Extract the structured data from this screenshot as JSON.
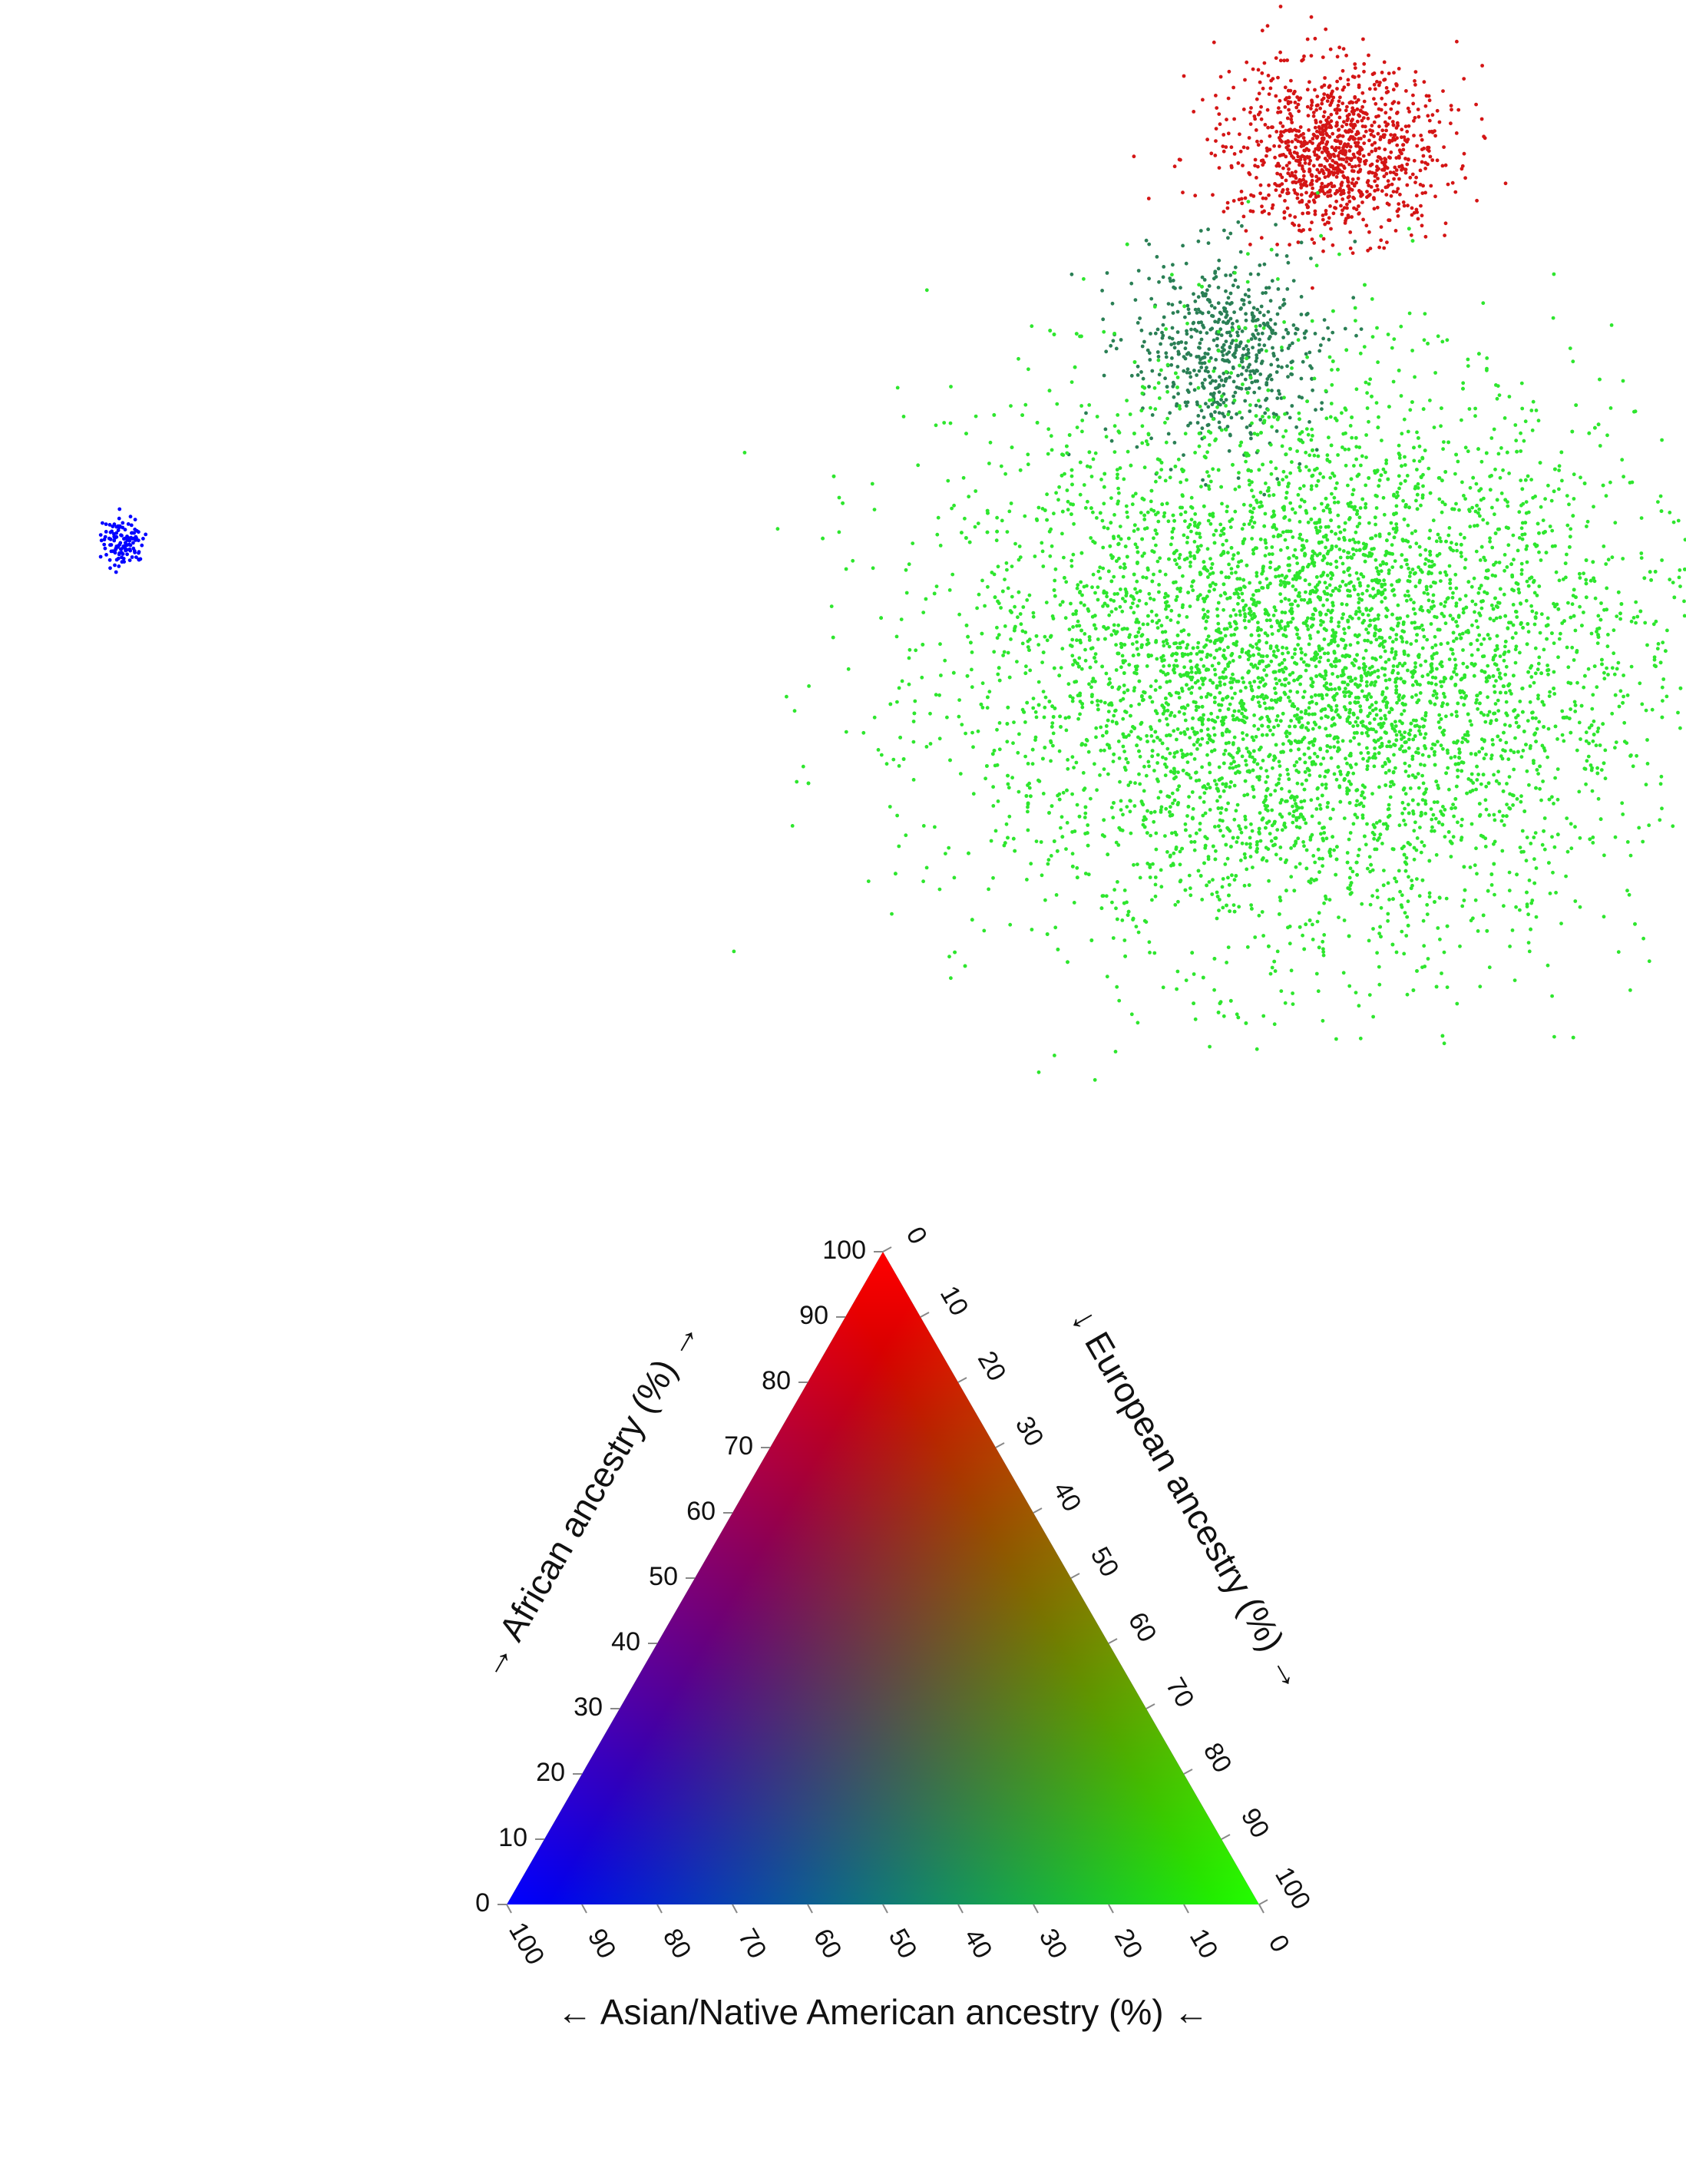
{
  "chart_data": [
    {
      "type": "scatter",
      "description_of_clusters_note": "",
      "title": "",
      "xlabel": "",
      "ylabel": "",
      "series": [
        {
          "color": "#0000ff",
          "cluster": {
            "cx": 160,
            "cy": 705,
            "sx": 14,
            "sy": 16,
            "n": 120
          }
        },
        {
          "color": "#d41515",
          "cluster": {
            "cx": 1740,
            "cy": 195,
            "sx": 70,
            "sy": 55,
            "n": 1100
          }
        },
        {
          "color": "#2a7f55",
          "cluster": {
            "cx": 1595,
            "cy": 455,
            "sx": 60,
            "sy": 65,
            "n": 600
          }
        },
        {
          "color": "#2ee62e",
          "cluster": {
            "cx": 1700,
            "cy": 860,
            "sx": 220,
            "sy": 180,
            "n": 6500
          }
        }
      ]
    },
    {
      "type": "ternary",
      "axes": {
        "left": {
          "title": "→ African ancestry (%) →",
          "ticks": [
            "0",
            "10",
            "20",
            "30",
            "40",
            "50",
            "60",
            "70",
            "80",
            "90",
            "100"
          ]
        },
        "right": {
          "title": "↓ European ancestry (%) →",
          "ticks": [
            "0",
            "10",
            "20",
            "30",
            "40",
            "50",
            "60",
            "70",
            "80",
            "90",
            "100"
          ]
        },
        "bottom": {
          "title": "← Asian/Native American ancestry (%) ←",
          "ticks": [
            "100",
            "90",
            "80",
            "70",
            "60",
            "50",
            "40",
            "30",
            "20",
            "10",
            "0"
          ]
        }
      },
      "colors": {
        "top": "#ff0000",
        "left": "#0000ff",
        "right": "#22ff00"
      }
    }
  ]
}
